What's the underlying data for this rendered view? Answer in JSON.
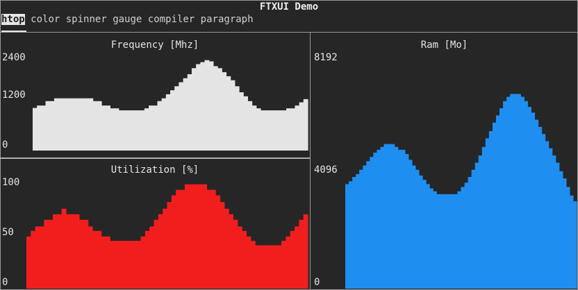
{
  "app": {
    "title": "FTXUI Demo"
  },
  "tabs": [
    {
      "label": "htop",
      "active": true
    },
    {
      "label": "color",
      "active": false
    },
    {
      "label": "spinner",
      "active": false
    },
    {
      "label": "gauge",
      "active": false
    },
    {
      "label": "compiler",
      "active": false
    },
    {
      "label": "paragraph",
      "active": false
    }
  ],
  "panels": {
    "frequency": {
      "title": "Frequency [Mhz]",
      "ticks": [
        "2400",
        "1200",
        "0"
      ],
      "color": "#e4e4e4"
    },
    "utilization": {
      "title": "Utilization [%]",
      "ticks": [
        "100",
        "50",
        "0"
      ],
      "color": "#f21e1e"
    },
    "ram": {
      "title": "Ram [Mo]",
      "ticks": [
        "8192",
        "4096",
        "0"
      ],
      "color": "#1e8ef0"
    }
  },
  "chart_data": [
    {
      "type": "bar",
      "ylim": [
        0,
        2400
      ],
      "values": [
        1060,
        1120,
        1120,
        1230,
        1230,
        1300,
        1300,
        1300,
        1300,
        1300,
        1300,
        1300,
        1300,
        1300,
        1230,
        1230,
        1120,
        1120,
        1050,
        1050,
        1000,
        1000,
        1000,
        1000,
        1000,
        1000,
        1050,
        1120,
        1120,
        1230,
        1300,
        1400,
        1500,
        1600,
        1700,
        1800,
        1900,
        2050,
        2150,
        2200,
        2250,
        2220,
        2100,
        2050,
        1950,
        1850,
        1750,
        1600,
        1450,
        1350,
        1230,
        1120,
        1050,
        1000,
        1000,
        1000,
        1000,
        1000,
        1000,
        1050,
        1050,
        1120,
        1200,
        1280
      ]
    },
    {
      "type": "bar",
      "ylim": [
        0,
        100
      ],
      "values": [
        47,
        52,
        56,
        56,
        62,
        62,
        67,
        67,
        72,
        67,
        67,
        67,
        62,
        62,
        56,
        52,
        52,
        47,
        47,
        43,
        43,
        43,
        43,
        43,
        43,
        43,
        47,
        52,
        56,
        62,
        67,
        72,
        78,
        84,
        89,
        89,
        94,
        94,
        94,
        94,
        94,
        89,
        89,
        84,
        78,
        72,
        67,
        62,
        56,
        52,
        47,
        43,
        39,
        39,
        39,
        39,
        39,
        39,
        43,
        47,
        52,
        56,
        62,
        67
      ]
    },
    {
      "type": "bar",
      "ylim": [
        0,
        8192
      ],
      "values": [
        3650,
        3750,
        3900,
        4000,
        4150,
        4300,
        4450,
        4600,
        4750,
        4850,
        4950,
        5050,
        5050,
        5050,
        4950,
        4850,
        4850,
        4700,
        4500,
        4300,
        4150,
        3950,
        3800,
        3650,
        3500,
        3400,
        3300,
        3300,
        3300,
        3300,
        3300,
        3300,
        3400,
        3550,
        3700,
        3900,
        4150,
        4400,
        4650,
        4950,
        5250,
        5500,
        5800,
        6050,
        6300,
        6550,
        6700,
        6800,
        6800,
        6800,
        6700,
        6550,
        6350,
        6150,
        5900,
        5650,
        5400,
        5150,
        4900,
        4650,
        4400,
        4100,
        3850,
        3550,
        3250,
        3050
      ]
    }
  ]
}
